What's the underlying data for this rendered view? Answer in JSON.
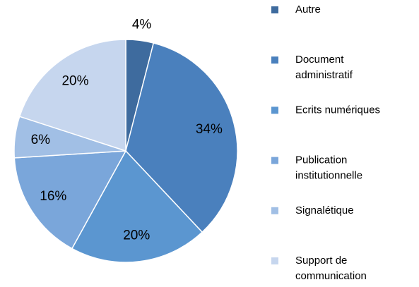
{
  "chart_data": {
    "type": "pie",
    "categories": [
      "Autre",
      "Document administratif",
      "Ecrits numériques",
      "Publication institutionnelle",
      "Signalétique",
      "Support de communication"
    ],
    "values": [
      4,
      34,
      20,
      16,
      6,
      20
    ],
    "value_labels": [
      "4%",
      "34%",
      "20%",
      "16%",
      "6%",
      "20%"
    ],
    "colors": [
      "#3e6b9e",
      "#4a80bd",
      "#5b96d0",
      "#7aa6da",
      "#a1bfe5",
      "#c6d6ee"
    ],
    "legend": "right"
  }
}
